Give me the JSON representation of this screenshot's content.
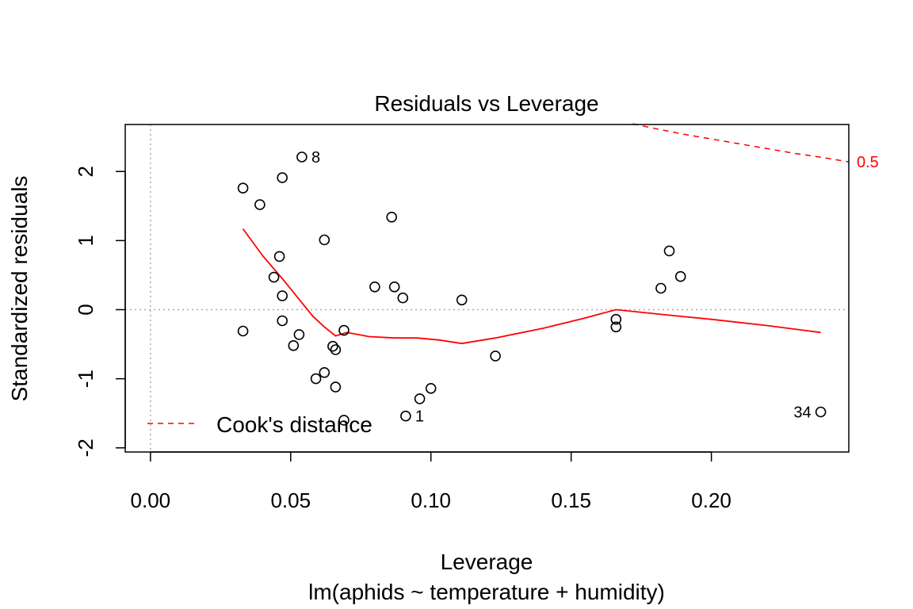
{
  "chart_data": {
    "type": "scatter",
    "title": "Residuals vs Leverage",
    "xlabel": "Leverage",
    "subtitle": "lm(aphids ~ temperature + humidity)",
    "ylabel": "Standardized residuals",
    "xlim": [
      -0.009,
      0.249
    ],
    "ylim": [
      -2.06,
      2.68
    ],
    "x_ticks": [
      {
        "value": 0.0,
        "label": "0.00"
      },
      {
        "value": 0.05,
        "label": "0.05"
      },
      {
        "value": 0.1,
        "label": "0.10"
      },
      {
        "value": 0.15,
        "label": "0.15"
      },
      {
        "value": 0.2,
        "label": "0.20"
      }
    ],
    "y_ticks": [
      {
        "value": -2,
        "label": "-2"
      },
      {
        "value": -1,
        "label": "-1"
      },
      {
        "value": 0,
        "label": "0"
      },
      {
        "value": 1,
        "label": "1"
      },
      {
        "value": 2,
        "label": "2"
      }
    ],
    "points": [
      {
        "x": 0.054,
        "y": 2.21,
        "label": "8"
      },
      {
        "x": 0.091,
        "y": -1.54,
        "label": "1"
      },
      {
        "x": 0.239,
        "y": -1.48,
        "label": "34"
      },
      {
        "x": 0.033,
        "y": 1.76
      },
      {
        "x": 0.047,
        "y": 1.91
      },
      {
        "x": 0.039,
        "y": 1.52
      },
      {
        "x": 0.086,
        "y": 1.34
      },
      {
        "x": 0.062,
        "y": 1.01
      },
      {
        "x": 0.046,
        "y": 0.77
      },
      {
        "x": 0.044,
        "y": 0.47
      },
      {
        "x": 0.047,
        "y": 0.2
      },
      {
        "x": 0.08,
        "y": 0.33
      },
      {
        "x": 0.087,
        "y": 0.33
      },
      {
        "x": 0.09,
        "y": 0.17
      },
      {
        "x": 0.111,
        "y": 0.14
      },
      {
        "x": 0.047,
        "y": -0.16
      },
      {
        "x": 0.033,
        "y": -0.31
      },
      {
        "x": 0.053,
        "y": -0.36
      },
      {
        "x": 0.069,
        "y": -0.3
      },
      {
        "x": 0.051,
        "y": -0.52
      },
      {
        "x": 0.065,
        "y": -0.53
      },
      {
        "x": 0.066,
        "y": -0.58
      },
      {
        "x": 0.123,
        "y": -0.67
      },
      {
        "x": 0.062,
        "y": -0.91
      },
      {
        "x": 0.059,
        "y": -1.0
      },
      {
        "x": 0.066,
        "y": -1.12
      },
      {
        "x": 0.1,
        "y": -1.14
      },
      {
        "x": 0.096,
        "y": -1.29
      },
      {
        "x": 0.069,
        "y": -1.6
      },
      {
        "x": 0.166,
        "y": -0.14
      },
      {
        "x": 0.166,
        "y": -0.25
      },
      {
        "x": 0.182,
        "y": 0.31
      },
      {
        "x": 0.185,
        "y": 0.85
      },
      {
        "x": 0.189,
        "y": 0.48
      }
    ],
    "smooth_line": {
      "x": [
        0.033,
        0.04,
        0.047,
        0.054,
        0.058,
        0.062,
        0.066,
        0.07,
        0.078,
        0.087,
        0.095,
        0.103,
        0.111,
        0.123,
        0.14,
        0.155,
        0.166,
        0.185,
        0.2,
        0.22,
        0.239
      ],
      "y": [
        1.17,
        0.78,
        0.45,
        0.1,
        -0.1,
        -0.25,
        -0.38,
        -0.33,
        -0.39,
        -0.41,
        -0.41,
        -0.44,
        -0.49,
        -0.41,
        -0.27,
        -0.12,
        0.0,
        -0.08,
        -0.14,
        -0.23,
        -0.33
      ]
    },
    "cooks_contour": {
      "label": "0.5",
      "x": [
        0.172,
        0.18,
        0.19,
        0.2,
        0.21,
        0.22,
        0.23,
        0.24,
        0.249
      ],
      "y": [
        2.69,
        2.62,
        2.54,
        2.47,
        2.4,
        2.33,
        2.26,
        2.2,
        2.14
      ]
    },
    "legend": {
      "entries": [
        {
          "name": "Cook's distance",
          "style": "dashed",
          "color": "#ff0000"
        }
      ],
      "placement": "bottom-left"
    },
    "colors": {
      "points": "#000000",
      "smooth": "#ff0000",
      "cooks": "#ff0000",
      "reference": "#aaaaaa"
    },
    "reference_lines": {
      "x": 0,
      "y": 0
    }
  }
}
